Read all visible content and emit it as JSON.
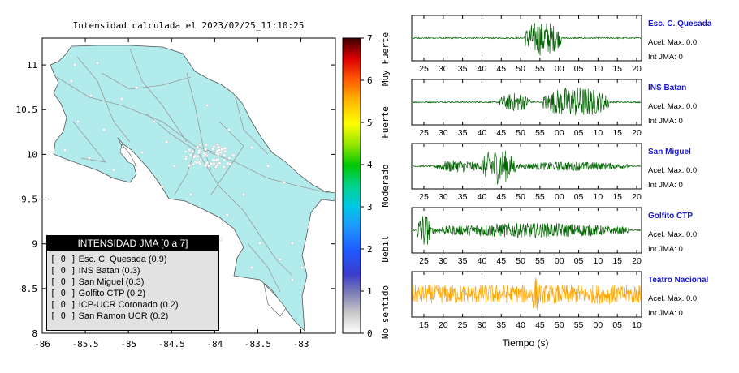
{
  "map": {
    "title": "Intensidad calculada el 2023/02/25_11:10:25",
    "x_ticks": [
      "-86",
      "-85.5",
      "-85",
      "-84.5",
      "-84",
      "-83.5",
      "-83"
    ],
    "y_ticks": [
      "11",
      "10.5",
      "10",
      "9.5",
      "9",
      "8.5",
      "8"
    ],
    "land_color": "#b2ebeb",
    "border_color": "#555555"
  },
  "colorbar": {
    "ticks": [
      "0",
      "1",
      "2",
      "3",
      "4",
      "5",
      "6",
      "7"
    ],
    "categories": [
      "No sentido",
      "Debil",
      "Moderado",
      "Fuerte",
      "Muy Fuerte"
    ]
  },
  "legend": {
    "header": "INTENSIDAD JMA [0 a 7]",
    "marker": "[ 0 ]",
    "items": [
      {
        "label": "Esc. C. Quesada (0.9)"
      },
      {
        "label": "INS Batan (0.3)"
      },
      {
        "label": "San Miguel (0.3)"
      },
      {
        "label": "Golfito CTP (0.2)"
      },
      {
        "label": "ICP-UCR Coronado (0.2)"
      },
      {
        "label": "San Ramon UCR (0.2)"
      }
    ]
  },
  "stations": [
    {
      "name": "Esc. C. Quesada",
      "accel": "Acel. Max. 0.0",
      "int": "Int JMA: 0",
      "color": "#006400",
      "ticks": [
        "25",
        "30",
        "35",
        "40",
        "45",
        "50",
        "55",
        "00",
        "05",
        "10",
        "15",
        "20"
      ]
    },
    {
      "name": "INS Batan",
      "accel": "Acel. Max. 0.0",
      "int": "Int JMA: 0",
      "color": "#006400",
      "ticks": [
        "25",
        "30",
        "35",
        "40",
        "45",
        "50",
        "55",
        "00",
        "05",
        "10",
        "15",
        "20"
      ]
    },
    {
      "name": "San Miguel",
      "accel": "Acel. Max. 0.0",
      "int": "Int JMA: 0",
      "color": "#006400",
      "ticks": [
        "25",
        "30",
        "35",
        "40",
        "45",
        "50",
        "55",
        "00",
        "05",
        "10",
        "15",
        "20"
      ]
    },
    {
      "name": "Golfito CTP",
      "accel": "Acel. Max. 0.0",
      "int": "Int JMA: 0",
      "color": "#006400",
      "ticks": [
        "25",
        "30",
        "35",
        "40",
        "45",
        "50",
        "55",
        "00",
        "05",
        "10",
        "15",
        "20"
      ]
    },
    {
      "name": "Teatro Nacional",
      "accel": "Acel. Max. 0.0",
      "int": "Int JMA: 0",
      "color": "#ffa500",
      "ticks": [
        "15",
        "20",
        "25",
        "30",
        "35",
        "40",
        "45",
        "50",
        "55",
        "00",
        "05",
        "10"
      ]
    }
  ],
  "waveform_xlabel": "Tiempo (s)",
  "chart_data": [
    {
      "type": "scatter",
      "title": "Intensidad calculada el 2023/02/25_11:10:25",
      "xlim": [
        -86,
        -82.6
      ],
      "ylim": [
        8,
        11.3
      ],
      "colorbar_range": [
        0,
        7
      ],
      "legend": [
        "Esc. C. Quesada (0.9)",
        "INS Batan (0.3)",
        "San Miguel (0.3)",
        "Golfito CTP (0.2)",
        "ICP-UCR Coronado (0.2)",
        "San Ramon UCR (0.2)"
      ]
    },
    {
      "type": "line",
      "xlabel": "Tiempo (s)",
      "series": [
        {
          "name": "Esc. C. Quesada",
          "accel_max": 0.0,
          "int_jma": 0
        },
        {
          "name": "INS Batan",
          "accel_max": 0.0,
          "int_jma": 0
        },
        {
          "name": "San Miguel",
          "accel_max": 0.0,
          "int_jma": 0
        },
        {
          "name": "Golfito CTP",
          "accel_max": 0.0,
          "int_jma": 0
        },
        {
          "name": "Teatro Nacional",
          "accel_max": 0.0,
          "int_jma": 0
        }
      ]
    }
  ]
}
